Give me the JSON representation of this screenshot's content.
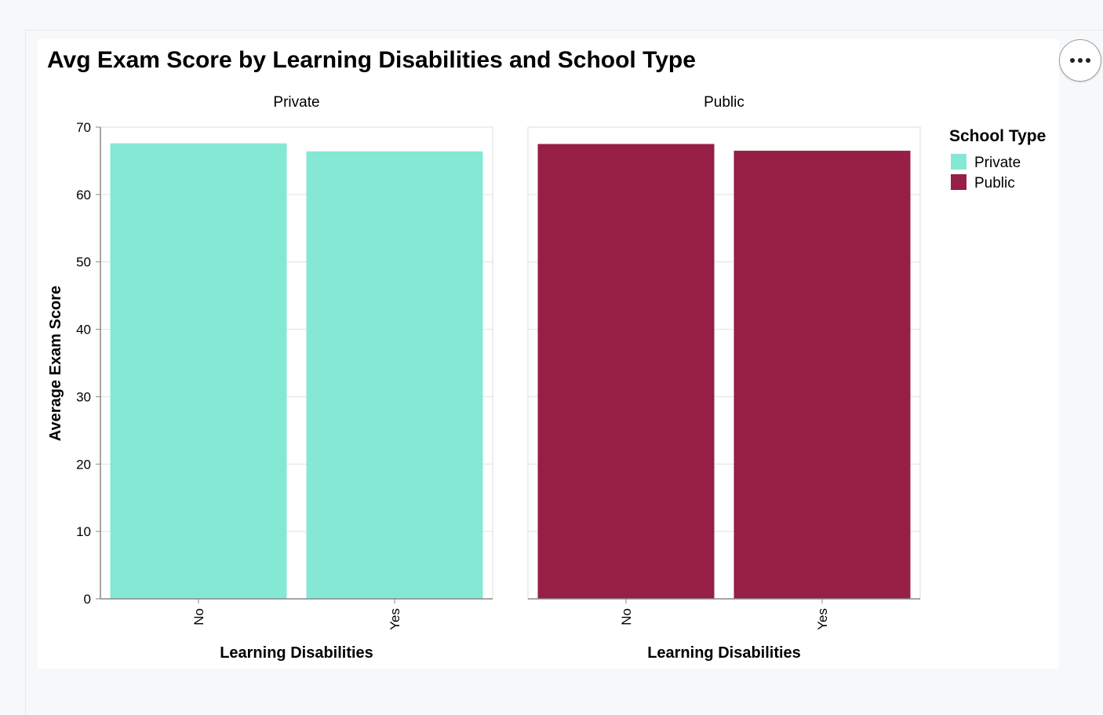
{
  "chart_data": {
    "type": "bar",
    "title": "Avg Exam Score by Learning Disabilities and School Type",
    "xlabel": "Learning Disabilities",
    "ylabel": "Average Exam Score",
    "ylim": [
      0,
      70
    ],
    "yticks": [
      0,
      10,
      20,
      30,
      40,
      50,
      60,
      70
    ],
    "categories": [
      "No",
      "Yes"
    ],
    "facets": [
      {
        "label": "Private",
        "color": "#84e8d4",
        "values": [
          67.6,
          66.4
        ]
      },
      {
        "label": "Public",
        "color": "#971e44",
        "values": [
          67.5,
          66.5
        ]
      }
    ],
    "grid": true,
    "legend": {
      "title": "School Type",
      "placement": "right",
      "items": [
        {
          "label": "Private",
          "color": "#84e8d4"
        },
        {
          "label": "Public",
          "color": "#971e44"
        }
      ]
    }
  },
  "toolbar": {
    "menu_icon": "more-horizontal-icon"
  }
}
